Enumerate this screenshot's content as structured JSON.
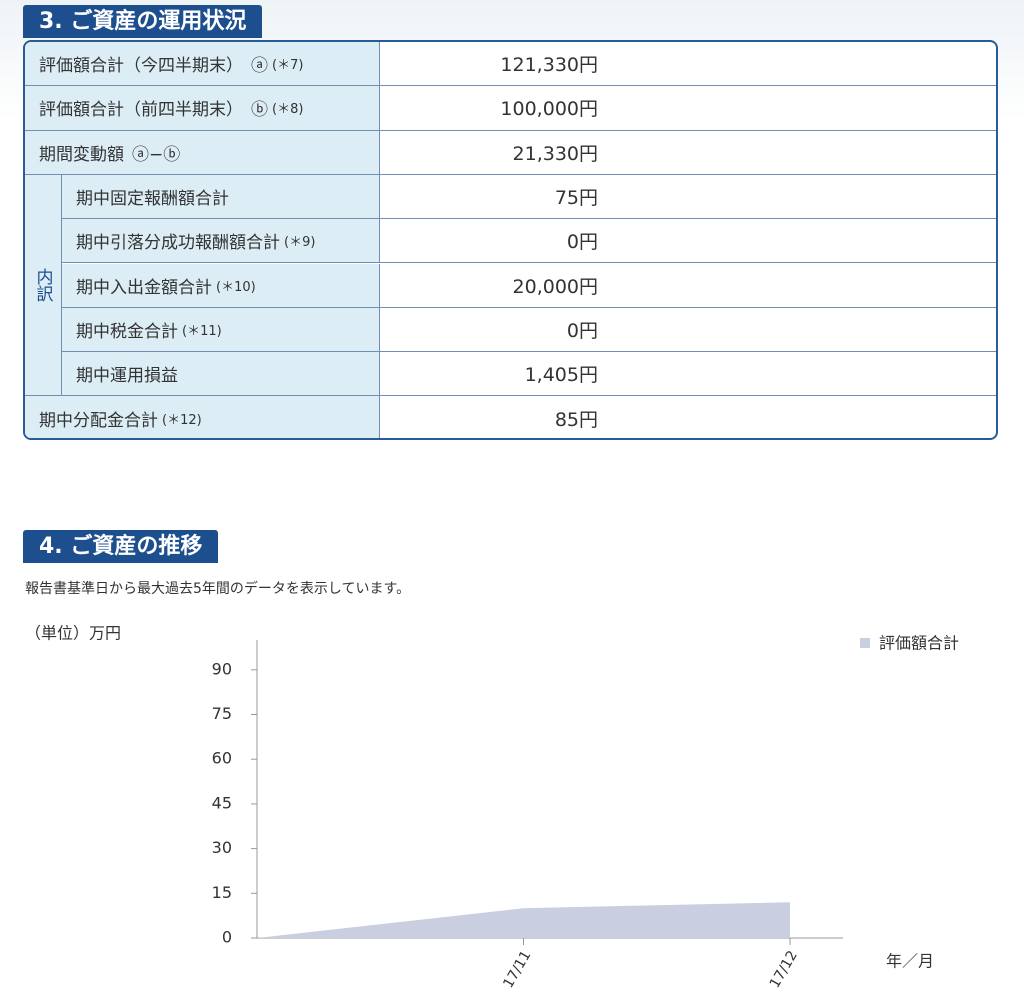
{
  "section3": {
    "title": "3. ご資産の運用状況",
    "group_label": "内訳",
    "rows": [
      {
        "label": "評価額合計（今四半期末）",
        "marker": "ⓐ",
        "note": "(＊7)",
        "value": "121,330円"
      },
      {
        "label": "評価額合計（前四半期末）",
        "marker": "ⓑ",
        "note": "(＊8)",
        "value": "100,000円"
      },
      {
        "label": "期間変動額",
        "marker": "ⓐ−ⓑ",
        "value": "21,330円"
      },
      {
        "label": "期中固定報酬額合計",
        "group": true,
        "value": "75円"
      },
      {
        "label": "期中引落分成功報酬額合計",
        "group": true,
        "note": "(＊9)",
        "value": "0円"
      },
      {
        "label": "期中入出金額合計",
        "group": true,
        "note": "(＊10)",
        "value": "20,000円"
      },
      {
        "label": "期中税金合計",
        "group": true,
        "note": "(＊11)",
        "value": "0円"
      },
      {
        "label": "期中運用損益",
        "group": true,
        "value": "1,405円"
      },
      {
        "label": "期中分配金合計",
        "note": "(＊12)",
        "value": "85円"
      }
    ]
  },
  "section4": {
    "title": "4. ご資産の推移",
    "description": "報告書基準日から最大過去5年間のデータを表示しています。"
  },
  "chart_data": {
    "type": "area",
    "unit_label": "（単位）万円",
    "x_label": "年／月",
    "categories": [
      null,
      "17/11",
      "17/12"
    ],
    "series": [
      {
        "name": "評価額合計",
        "color": "#c9cee0",
        "values": [
          0,
          10,
          12
        ]
      }
    ],
    "ylim": [
      0,
      100
    ],
    "yticks": [
      0,
      15,
      30,
      45,
      60,
      75,
      90
    ],
    "legend": "top-right"
  }
}
